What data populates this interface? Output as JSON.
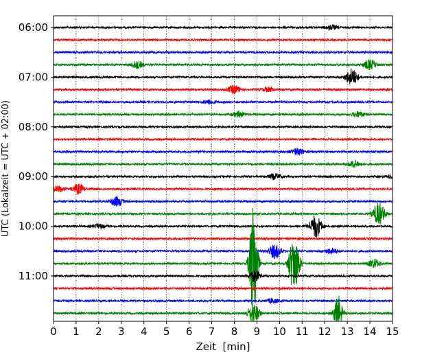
{
  "chart_data": {
    "type": "line",
    "title": "",
    "xlabel": "Zeit  [min]",
    "ylabel": "UTC (Lokalzeit = UTC + 02:00)",
    "xlim": [
      0,
      15
    ],
    "x_ticks": [
      "0",
      "1",
      "2",
      "3",
      "4",
      "5",
      "6",
      "7",
      "8",
      "9",
      "10",
      "11",
      "12",
      "13",
      "14",
      "15"
    ],
    "y_tick_labels": [
      "06:00",
      "07:00",
      "08:00",
      "09:00",
      "10:00",
      "11:00"
    ],
    "grid": "vertical dotted lines at each minute",
    "trace_interval_minutes": 15,
    "colors_cycle": [
      "#000000",
      "#ff0000",
      "#0000ff",
      "#008000"
    ],
    "traces": [
      {
        "start": "06:00",
        "color": "#000000",
        "events": [
          {
            "t": 12.3,
            "amp": 3
          }
        ]
      },
      {
        "start": "06:15",
        "color": "#ff0000",
        "events": []
      },
      {
        "start": "06:30",
        "color": "#0000ff",
        "events": []
      },
      {
        "start": "06:45",
        "color": "#008000",
        "events": [
          {
            "t": 3.7,
            "amp": 5
          },
          {
            "t": 14.0,
            "amp": 7
          }
        ]
      },
      {
        "start": "07:00",
        "color": "#000000",
        "events": [
          {
            "t": 13.2,
            "amp": 12
          }
        ]
      },
      {
        "start": "07:15",
        "color": "#ff0000",
        "events": [
          {
            "t": 8.0,
            "amp": 6
          },
          {
            "t": 9.5,
            "amp": 3
          }
        ]
      },
      {
        "start": "07:30",
        "color": "#0000ff",
        "events": [
          {
            "t": 6.9,
            "amp": 3
          }
        ]
      },
      {
        "start": "07:45",
        "color": "#008000",
        "events": [
          {
            "t": 8.2,
            "amp": 4
          },
          {
            "t": 13.5,
            "amp": 4
          }
        ]
      },
      {
        "start": "08:00",
        "color": "#000000",
        "events": []
      },
      {
        "start": "08:15",
        "color": "#ff0000",
        "events": []
      },
      {
        "start": "08:30",
        "color": "#0000ff",
        "events": [
          {
            "t": 10.8,
            "amp": 5
          }
        ]
      },
      {
        "start": "08:45",
        "color": "#008000",
        "events": [
          {
            "t": 13.3,
            "amp": 5
          }
        ]
      },
      {
        "start": "09:00",
        "color": "#000000",
        "events": [
          {
            "t": 9.8,
            "amp": 4
          },
          {
            "t": 15.0,
            "amp": 3
          }
        ]
      },
      {
        "start": "09:15",
        "color": "#ff0000",
        "events": [
          {
            "t": 0.2,
            "amp": 4
          },
          {
            "t": 1.1,
            "amp": 7
          }
        ]
      },
      {
        "start": "09:30",
        "color": "#0000ff",
        "events": [
          {
            "t": 2.8,
            "amp": 7
          }
        ]
      },
      {
        "start": "09:45",
        "color": "#008000",
        "events": [
          {
            "t": 14.4,
            "amp": 16
          }
        ]
      },
      {
        "start": "10:00",
        "color": "#000000",
        "events": [
          {
            "t": 2.0,
            "amp": 3
          },
          {
            "t": 11.6,
            "amp": 16
          }
        ]
      },
      {
        "start": "10:15",
        "color": "#ff0000",
        "events": []
      },
      {
        "start": "10:30",
        "color": "#0000ff",
        "events": [
          {
            "t": 9.8,
            "amp": 10
          },
          {
            "t": 12.3,
            "amp": 4
          }
        ]
      },
      {
        "start": "10:45",
        "color": "#008000",
        "events": [
          {
            "t": 8.85,
            "amp": 90
          },
          {
            "t": 10.55,
            "amp": 28
          },
          {
            "t": 10.75,
            "amp": 26
          },
          {
            "t": 14.2,
            "amp": 6
          }
        ]
      },
      {
        "start": "11:00",
        "color": "#000000",
        "events": [
          {
            "t": 8.9,
            "amp": 8
          }
        ]
      },
      {
        "start": "11:15",
        "color": "#ff0000",
        "events": []
      },
      {
        "start": "11:30",
        "color": "#0000ff",
        "events": [
          {
            "t": 9.7,
            "amp": 3
          }
        ]
      },
      {
        "start": "11:45",
        "color": "#008000",
        "events": [
          {
            "t": 8.85,
            "amp": 14
          },
          {
            "t": 12.6,
            "amp": 26
          }
        ]
      }
    ]
  }
}
